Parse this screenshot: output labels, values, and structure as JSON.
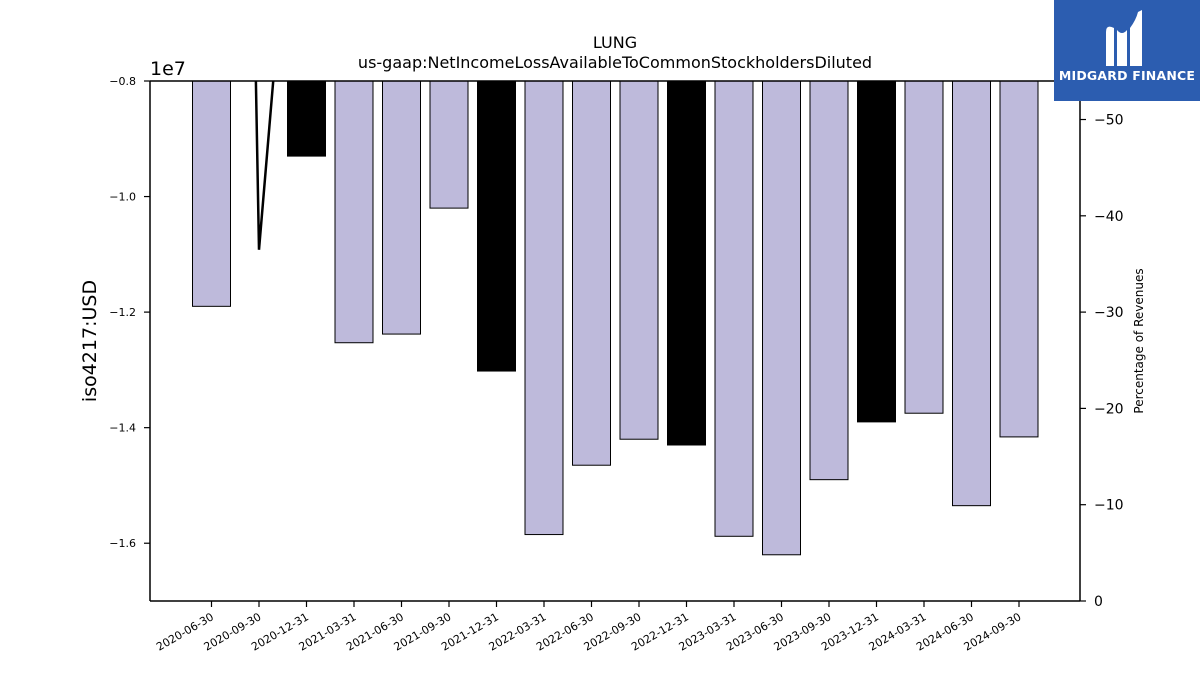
{
  "chart_data": {
    "type": "bar",
    "title": "LUNG",
    "subtitle": "us-gaap:NetIncomeLossAvailableToCommonStockholdersDiluted",
    "ylabel": "iso4217:USD",
    "y2label": "Percentage of Revenues",
    "offset_label": "1e7",
    "ylim": [
      -1.7,
      -0.8
    ],
    "y_scale_factor": 10000000,
    "y2lim": [
      0,
      54
    ],
    "yticks": [
      -1.6,
      -1.4,
      -1.2,
      -1.0,
      -0.8
    ],
    "ytick_labels": [
      "−1.6",
      "−1.4",
      "−1.2",
      "−1.0",
      "−0.8"
    ],
    "y2ticks": [
      0,
      10,
      20,
      30,
      40,
      50
    ],
    "y2tick_labels": [
      "0",
      "−10",
      "−20",
      "−30",
      "−40",
      "−50"
    ],
    "categories": [
      "2020-06-30",
      "2020-09-30",
      "2020-12-31",
      "2021-03-31",
      "2021-06-30",
      "2021-09-30",
      "2021-12-31",
      "2022-03-31",
      "2022-06-30",
      "2022-09-30",
      "2022-12-31",
      "2023-03-31",
      "2023-06-30",
      "2023-09-30",
      "2023-12-31",
      "2024-03-31",
      "2024-06-30",
      "2024-09-30"
    ],
    "values": [
      -1.19,
      null,
      -0.93,
      -1.253,
      -1.238,
      -1.02,
      -1.302,
      -1.585,
      -1.465,
      -1.42,
      -1.43,
      -1.588,
      -1.62,
      -1.49,
      -1.39,
      -1.375,
      -1.535,
      -1.416
    ],
    "bar_colors": [
      "#bebadb",
      null,
      "#000000",
      "#bebadb",
      "#bebadb",
      "#bebadb",
      "#000000",
      "#bebadb",
      "#bebadb",
      "#bebadb",
      "#000000",
      "#bebadb",
      "#bebadb",
      "#bebadb",
      "#000000",
      "#bebadb",
      "#bebadb",
      "#bebadb"
    ],
    "line_series": {
      "x_index": [
        0.93,
        1.0,
        1.32
      ],
      "values": [
        -0.78,
        -1.092,
        -0.78
      ]
    },
    "grid": false
  },
  "logo": {
    "text": "MIDGARD FINANCE",
    "background": "#2c5db0"
  }
}
